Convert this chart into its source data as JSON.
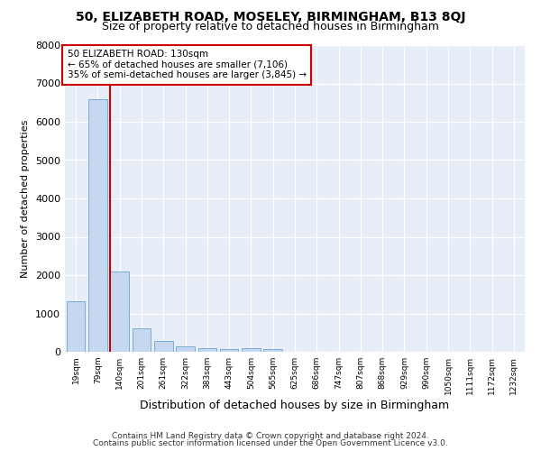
{
  "title1": "50, ELIZABETH ROAD, MOSELEY, BIRMINGHAM, B13 8QJ",
  "title2": "Size of property relative to detached houses in Birmingham",
  "xlabel": "Distribution of detached houses by size in Birmingham",
  "ylabel": "Number of detached properties",
  "footnote1": "Contains HM Land Registry data © Crown copyright and database right 2024.",
  "footnote2": "Contains public sector information licensed under the Open Government Licence v3.0.",
  "categories": [
    "19sqm",
    "79sqm",
    "140sqm",
    "201sqm",
    "261sqm",
    "322sqm",
    "383sqm",
    "443sqm",
    "504sqm",
    "565sqm",
    "625sqm",
    "686sqm",
    "747sqm",
    "807sqm",
    "868sqm",
    "929sqm",
    "990sqm",
    "1050sqm",
    "1111sqm",
    "1172sqm",
    "1232sqm"
  ],
  "values": [
    1310,
    6600,
    2100,
    620,
    285,
    140,
    95,
    75,
    85,
    60,
    0,
    0,
    0,
    0,
    0,
    0,
    0,
    0,
    0,
    0,
    0
  ],
  "bar_color": "#c5d8f0",
  "bar_edge_color": "#7aadd4",
  "highlight_line_color": "#cc0000",
  "annotation_text": "50 ELIZABETH ROAD: 130sqm\n← 65% of detached houses are smaller (7,106)\n35% of semi-detached houses are larger (3,845) →",
  "annotation_box_color": "#ffffff",
  "annotation_box_edge_color": "#cc0000",
  "ylim": [
    0,
    8000
  ],
  "yticks": [
    0,
    1000,
    2000,
    3000,
    4000,
    5000,
    6000,
    7000,
    8000
  ],
  "background_color": "#ffffff",
  "axes_background": "#e8eef8",
  "grid_color": "#ffffff",
  "title1_fontsize": 10,
  "title2_fontsize": 9,
  "xlabel_fontsize": 9,
  "ylabel_fontsize": 8,
  "annotation_fontsize": 7.5
}
